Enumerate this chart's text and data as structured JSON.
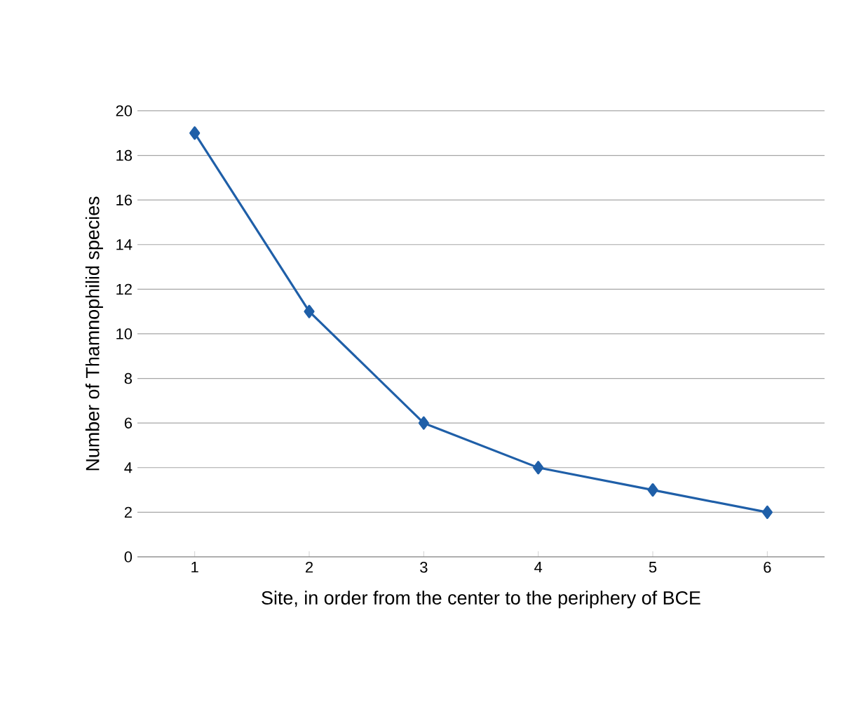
{
  "chart_data": {
    "type": "line",
    "xlabel": "Site, in order from the center to the periphery of BCE",
    "ylabel": "Number of Thamnophilid species",
    "categories": [
      "1",
      "2",
      "3",
      "4",
      "5",
      "6"
    ],
    "series": [
      {
        "color": "#1f5fa8",
        "values": [
          19,
          11,
          6,
          4,
          3,
          2
        ]
      }
    ],
    "ylim": [
      0,
      20
    ],
    "yticks": [
      0,
      2,
      4,
      6,
      8,
      10,
      12,
      14,
      16,
      18,
      20
    ],
    "grid": "y",
    "marker": "diamond",
    "line_style": "solid"
  }
}
